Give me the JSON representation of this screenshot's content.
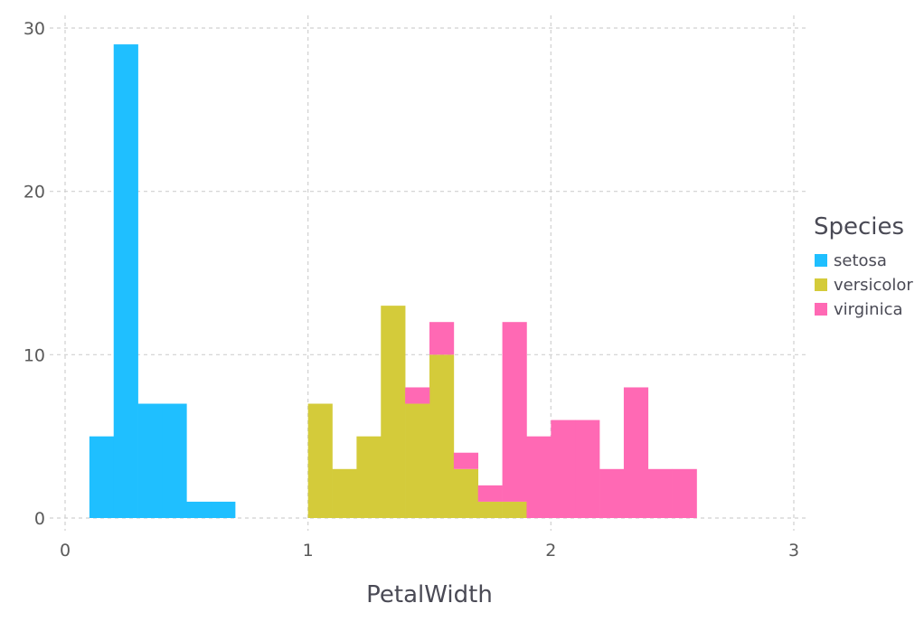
{
  "chart_data": {
    "type": "bar",
    "stacked": true,
    "bin_width": 0.1,
    "xlabel": "PetalWidth",
    "ylabel": "",
    "xlim": [
      0,
      3
    ],
    "ylim": [
      0,
      30
    ],
    "x_ticks": [
      0,
      1,
      2,
      3
    ],
    "y_ticks": [
      0,
      10,
      20,
      30
    ],
    "grid": true,
    "legend": {
      "title": "Species",
      "position": "right"
    },
    "series": [
      {
        "name": "setosa",
        "color": "#1fbfff",
        "bins": [
          {
            "x": 0.1,
            "value": 5
          },
          {
            "x": 0.2,
            "value": 29
          },
          {
            "x": 0.3,
            "value": 7
          },
          {
            "x": 0.4,
            "value": 7
          },
          {
            "x": 0.5,
            "value": 1
          },
          {
            "x": 0.6,
            "value": 1
          }
        ]
      },
      {
        "name": "versicolor",
        "color": "#d4cb3a",
        "bins": [
          {
            "x": 1.0,
            "value": 7
          },
          {
            "x": 1.1,
            "value": 3
          },
          {
            "x": 1.2,
            "value": 5
          },
          {
            "x": 1.3,
            "value": 13
          },
          {
            "x": 1.4,
            "value": 7
          },
          {
            "x": 1.5,
            "value": 10
          },
          {
            "x": 1.6,
            "value": 3
          },
          {
            "x": 1.7,
            "value": 1
          },
          {
            "x": 1.8,
            "value": 1
          }
        ]
      },
      {
        "name": "virginica",
        "color": "#ff69b4",
        "bins": [
          {
            "x": 1.4,
            "value": 1
          },
          {
            "x": 1.5,
            "value": 2
          },
          {
            "x": 1.6,
            "value": 1
          },
          {
            "x": 1.7,
            "value": 1
          },
          {
            "x": 1.8,
            "value": 11
          },
          {
            "x": 1.9,
            "value": 5
          },
          {
            "x": 2.0,
            "value": 6
          },
          {
            "x": 2.1,
            "value": 6
          },
          {
            "x": 2.2,
            "value": 3
          },
          {
            "x": 2.3,
            "value": 8
          },
          {
            "x": 2.4,
            "value": 3
          },
          {
            "x": 2.5,
            "value": 3
          }
        ]
      }
    ]
  }
}
